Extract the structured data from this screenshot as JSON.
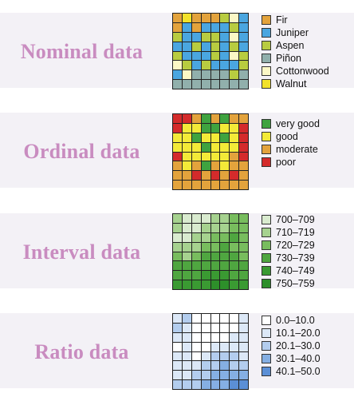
{
  "panels": [
    {
      "title": "Nominal data",
      "legend": [
        {
          "label": "Fir",
          "color": "#e3a33c"
        },
        {
          "label": "Juniper",
          "color": "#4aa6e0"
        },
        {
          "label": "Aspen",
          "color": "#b8cc40"
        },
        {
          "label": "Piñon",
          "color": "#91b0ac"
        },
        {
          "label": "Cottonwood",
          "color": "#fbf7c5"
        },
        {
          "label": "Walnut",
          "color": "#f2e22a"
        }
      ],
      "grid": [
        [
          0,
          5,
          0,
          0,
          0,
          2,
          4,
          1
        ],
        [
          0,
          1,
          0,
          1,
          1,
          1,
          2,
          1
        ],
        [
          2,
          1,
          1,
          2,
          2,
          1,
          4,
          1
        ],
        [
          1,
          1,
          2,
          1,
          2,
          1,
          2,
          1
        ],
        [
          2,
          1,
          1,
          1,
          2,
          1,
          4,
          2
        ],
        [
          4,
          2,
          1,
          2,
          1,
          1,
          1,
          2
        ],
        [
          1,
          4,
          3,
          3,
          3,
          3,
          2,
          3
        ],
        [
          3,
          3,
          3,
          3,
          3,
          3,
          3,
          3
        ]
      ]
    },
    {
      "title": "Ordinal data",
      "legend": [
        {
          "label": "very good",
          "color": "#3fa33f"
        },
        {
          "label": "good",
          "color": "#f3ea38"
        },
        {
          "label": "moderate",
          "color": "#e3a33c"
        },
        {
          "label": "poor",
          "color": "#d42b2b"
        }
      ],
      "grid": [
        [
          3,
          3,
          2,
          0,
          2,
          0,
          2,
          2
        ],
        [
          3,
          1,
          1,
          0,
          0,
          1,
          1,
          3
        ],
        [
          1,
          1,
          0,
          1,
          1,
          0,
          1,
          3
        ],
        [
          1,
          1,
          1,
          0,
          1,
          1,
          1,
          3
        ],
        [
          3,
          1,
          1,
          1,
          1,
          1,
          2,
          3
        ],
        [
          2,
          1,
          2,
          0,
          2,
          1,
          2,
          2
        ],
        [
          2,
          2,
          3,
          2,
          3,
          2,
          3,
          2
        ],
        [
          2,
          2,
          2,
          2,
          2,
          2,
          2,
          2
        ]
      ]
    },
    {
      "title": "Interval data",
      "legend": [
        {
          "label": "700–709",
          "color": "#d9ebcf"
        },
        {
          "label": "710–719",
          "color": "#a6d28f"
        },
        {
          "label": "720–729",
          "color": "#78bd5e"
        },
        {
          "label": "730–739",
          "color": "#4fa640"
        },
        {
          "label": "740–749",
          "color": "#3a9a32"
        },
        {
          "label": "750–759",
          "color": "#2d8f2a"
        }
      ],
      "grid": [
        [
          1,
          0,
          0,
          0,
          1,
          1,
          2,
          2
        ],
        [
          1,
          0,
          0,
          1,
          1,
          1,
          2,
          2
        ],
        [
          0,
          0,
          1,
          1,
          2,
          2,
          3,
          2
        ],
        [
          1,
          1,
          1,
          2,
          2,
          3,
          2,
          2
        ],
        [
          2,
          1,
          2,
          3,
          3,
          3,
          3,
          2
        ],
        [
          3,
          3,
          3,
          3,
          3,
          3,
          3,
          3
        ],
        [
          3,
          3,
          3,
          4,
          4,
          4,
          3,
          3
        ],
        [
          4,
          4,
          4,
          4,
          5,
          5,
          4,
          4
        ]
      ]
    },
    {
      "title": "Ratio data",
      "legend": [
        {
          "label": "0.0–10.0",
          "color": "#ffffff"
        },
        {
          "label": "10.1–20.0",
          "color": "#dce8f7"
        },
        {
          "label": "20.1–30.0",
          "color": "#b3cdee"
        },
        {
          "label": "30.1–40.0",
          "color": "#85afe3"
        },
        {
          "label": "40.1–50.0",
          "color": "#5b8fd6"
        }
      ],
      "grid": [
        [
          1,
          2,
          0,
          0,
          0,
          0,
          0,
          1
        ],
        [
          2,
          1,
          0,
          0,
          0,
          0,
          0,
          1
        ],
        [
          1,
          1,
          0,
          0,
          0,
          0,
          1,
          1
        ],
        [
          0,
          1,
          0,
          0,
          1,
          1,
          1,
          1
        ],
        [
          1,
          1,
          0,
          1,
          2,
          2,
          2,
          1
        ],
        [
          1,
          1,
          1,
          2,
          2,
          3,
          2,
          2
        ],
        [
          1,
          1,
          2,
          2,
          3,
          3,
          3,
          3
        ],
        [
          2,
          2,
          2,
          3,
          3,
          3,
          4,
          4
        ]
      ]
    }
  ]
}
